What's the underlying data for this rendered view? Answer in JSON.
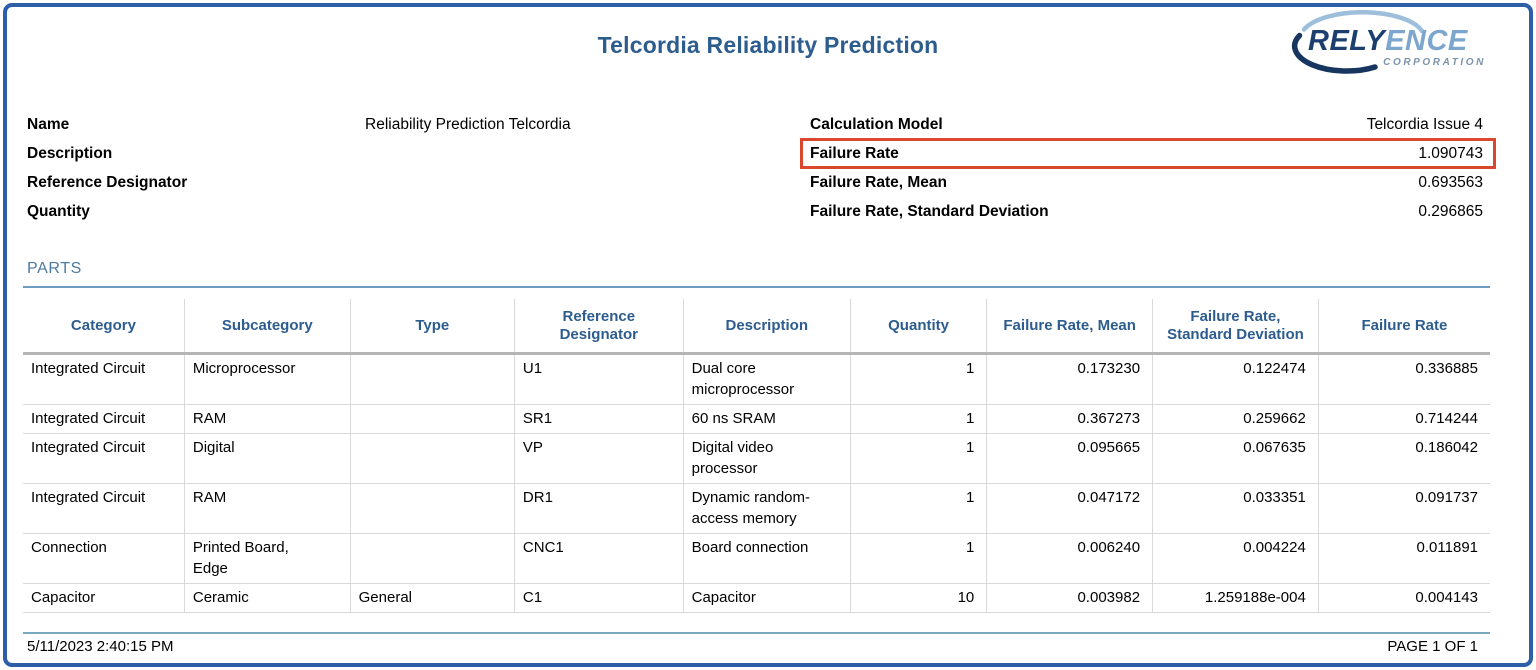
{
  "page": {
    "title": "Telcordia Reliability Prediction"
  },
  "logo": {
    "text_primary": "RELY",
    "text_secondary": "ENCE",
    "subtitle": "CORPORATION",
    "color_primary": "#1c3f70",
    "color_secondary": "#7ca6cd"
  },
  "info_left": {
    "rows": [
      {
        "label": "Name",
        "value": "Reliability Prediction Telcordia"
      },
      {
        "label": "Description",
        "value": ""
      },
      {
        "label": "Reference Designator",
        "value": ""
      },
      {
        "label": "Quantity",
        "value": ""
      }
    ]
  },
  "info_right": {
    "rows": [
      {
        "label": "Calculation Model",
        "value": "Telcordia Issue 4",
        "highlighted": false
      },
      {
        "label": "Failure Rate",
        "value": "1.090743",
        "highlighted": true
      },
      {
        "label": "Failure Rate, Mean",
        "value": "0.693563",
        "highlighted": false
      },
      {
        "label": "Failure Rate, Standard Deviation",
        "value": "0.296865",
        "highlighted": false
      }
    ]
  },
  "parts": {
    "heading": "PARTS"
  },
  "table": {
    "columns": [
      {
        "label": "Category",
        "align": "left",
        "width_pct": 11.0
      },
      {
        "label": "Subcategory",
        "align": "left",
        "width_pct": 11.3
      },
      {
        "label": "Type",
        "align": "left",
        "width_pct": 11.2
      },
      {
        "label": "Reference\nDesignator",
        "align": "left",
        "width_pct": 11.5
      },
      {
        "label": "Description",
        "align": "left",
        "width_pct": 11.4
      },
      {
        "label": "Quantity",
        "align": "right",
        "width_pct": 9.3
      },
      {
        "label": "Failure Rate, Mean",
        "align": "right",
        "width_pct": 11.3
      },
      {
        "label": "Failure Rate,\nStandard Deviation",
        "align": "right",
        "width_pct": 11.3
      },
      {
        "label": "Failure Rate",
        "align": "right",
        "width_pct": 11.7
      }
    ],
    "rows": [
      [
        "Integrated Circuit",
        "Microprocessor",
        "",
        "U1",
        "Dual core\nmicroprocessor",
        "1",
        "0.173230",
        "0.122474",
        "0.336885"
      ],
      [
        "Integrated Circuit",
        "RAM",
        "",
        "SR1",
        "60 ns SRAM",
        "1",
        "0.367273",
        "0.259662",
        "0.714244"
      ],
      [
        "Integrated Circuit",
        "Digital",
        "",
        "VP",
        "Digital video\nprocessor",
        "1",
        "0.095665",
        "0.067635",
        "0.186042"
      ],
      [
        "Integrated Circuit",
        "RAM",
        "",
        "DR1",
        "Dynamic random-\naccess memory",
        "1",
        "0.047172",
        "0.033351",
        "0.091737"
      ],
      [
        "Connection",
        "Printed Board,\nEdge",
        "",
        "CNC1",
        "Board connection",
        "1",
        "0.006240",
        "0.004224",
        "0.011891"
      ],
      [
        "Capacitor",
        "Ceramic",
        "General",
        "C1",
        "Capacitor",
        "10",
        "0.003982",
        "1.259188e-004",
        "0.004143"
      ]
    ]
  },
  "footer": {
    "timestamp": "5/11/2023 2:40:15 PM",
    "page_label": "PAGE 1 OF 1"
  },
  "colors": {
    "title_blue": "#2d5c8e",
    "highlight_red": "#d9472e",
    "page_border_blue": "#2d5fa8",
    "section_blue": "#4e7a9e"
  }
}
